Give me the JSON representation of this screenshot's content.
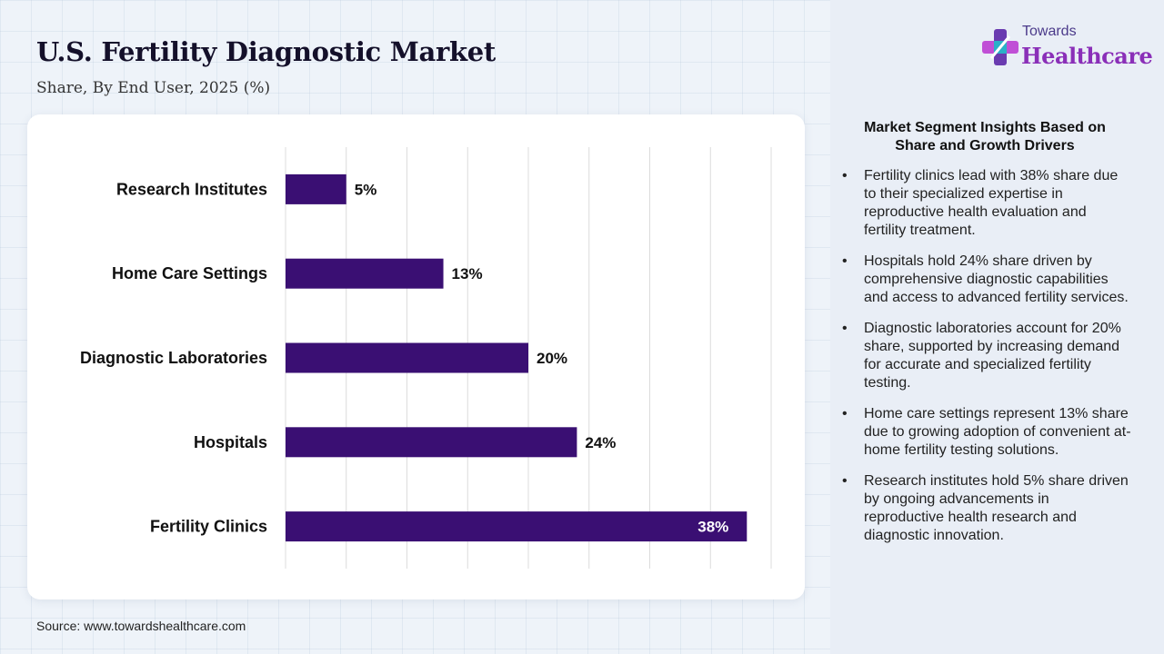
{
  "header": {
    "title": "U.S. Fertility Diagnostic Market",
    "subtitle": "Share, By End User, 2025 (%)"
  },
  "source": "Source: www.towardshealthcare.com",
  "logo": {
    "line1": "Towards",
    "line2": "Healthcare",
    "icon": "cross-logo-icon"
  },
  "colors": {
    "bar": "#3a0f73",
    "label_inside": "#ffffff",
    "brand_purple": "#8a2fb8"
  },
  "chart_data": {
    "type": "bar",
    "orientation": "horizontal",
    "categories": [
      "Research Institutes",
      "Home Care Settings",
      "Diagnostic Laboratories",
      "Hospitals",
      "Fertility Clinics"
    ],
    "values": [
      5,
      13,
      20,
      24,
      38
    ],
    "labels": [
      "5%",
      "13%",
      "20%",
      "24%",
      "38%"
    ],
    "xlim": [
      0,
      40
    ],
    "grid": true,
    "unit": "%"
  },
  "insights": {
    "title": "Market Segment Insights Based on Share and Growth Drivers",
    "items": [
      "Fertility clinics lead with 38% share due to their specialized expertise in reproductive health evaluation and fertility treatment.",
      "Hospitals hold 24% share driven by comprehensive diagnostic capabilities and access to advanced fertility services.",
      "Diagnostic laboratories account for 20% share, supported by increasing demand for accurate and specialized fertility testing.",
      "Home care settings represent 13% share due to growing adoption of convenient at-home fertility testing solutions.",
      "Research institutes hold 5% share driven by ongoing advancements in reproductive health research and diagnostic innovation."
    ]
  }
}
